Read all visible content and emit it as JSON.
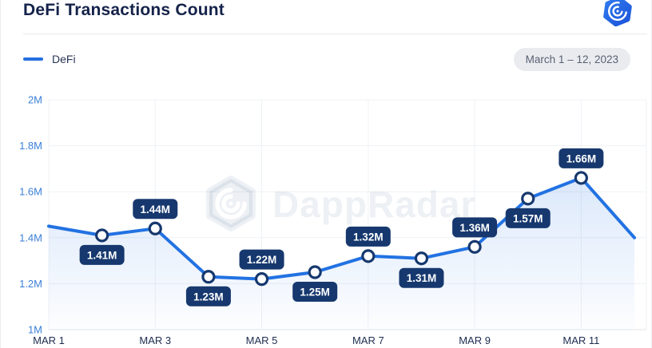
{
  "header": {
    "title": "DeFi Transactions Count"
  },
  "logo": {
    "icon": "dappradar-hexagon-spiral-logo"
  },
  "legend": {
    "label": "DeFi",
    "swatch_color": "#2470e0"
  },
  "date_range": "March 1 – 12, 2023",
  "watermark": {
    "text": "DappRadar",
    "icon": "dappradar-hexagon-spiral-watermark"
  },
  "chart_data": {
    "type": "line",
    "title": "DeFi Transactions Count",
    "series": [
      {
        "name": "DeFi",
        "x": [
          "MAR 1",
          "MAR 2",
          "MAR 3",
          "MAR 4",
          "MAR 5",
          "MAR 6",
          "MAR 7",
          "MAR 8",
          "MAR 9",
          "MAR 10",
          "MAR 11",
          "MAR 12"
        ],
        "values_millions": [
          1.45,
          1.41,
          1.44,
          1.23,
          1.22,
          1.25,
          1.32,
          1.31,
          1.36,
          1.57,
          1.66,
          1.4
        ],
        "point_labels": [
          "",
          "1.41M",
          "1.44M",
          "1.23M",
          "1.22M",
          "1.25M",
          "1.32M",
          "1.31M",
          "1.36M",
          "1.57M",
          "1.66M",
          ""
        ],
        "label_positions": [
          "",
          "below",
          "above",
          "below",
          "above",
          "below",
          "above",
          "below",
          "above",
          "below",
          "above",
          ""
        ]
      }
    ],
    "x_tick_labels": [
      "MAR 1",
      "MAR 3",
      "MAR 5",
      "MAR 7",
      "MAR 9",
      "MAR 11"
    ],
    "y_tick_labels": [
      "1M",
      "1.2M",
      "1.4M",
      "1.6M",
      "1.8M",
      "2M"
    ],
    "ylim_millions": [
      1,
      2
    ],
    "grid": true,
    "legend_position": "top-left",
    "colors": {
      "line": "#2272e2",
      "marker_fill": "#ffffff",
      "marker_ring": "#16386e",
      "label_bg": "#16386e",
      "label_text": "#ffffff",
      "area_top": "rgba(34,114,226,0.16)",
      "area_bottom": "rgba(34,114,226,0.01)",
      "grid_line": "#eef1f5",
      "axis_line": "#e2e5ea",
      "y_tick_text": "#3b80d8",
      "x_tick_text": "#1e2d50",
      "watermark": "rgba(30,58,112,0.08)"
    }
  }
}
